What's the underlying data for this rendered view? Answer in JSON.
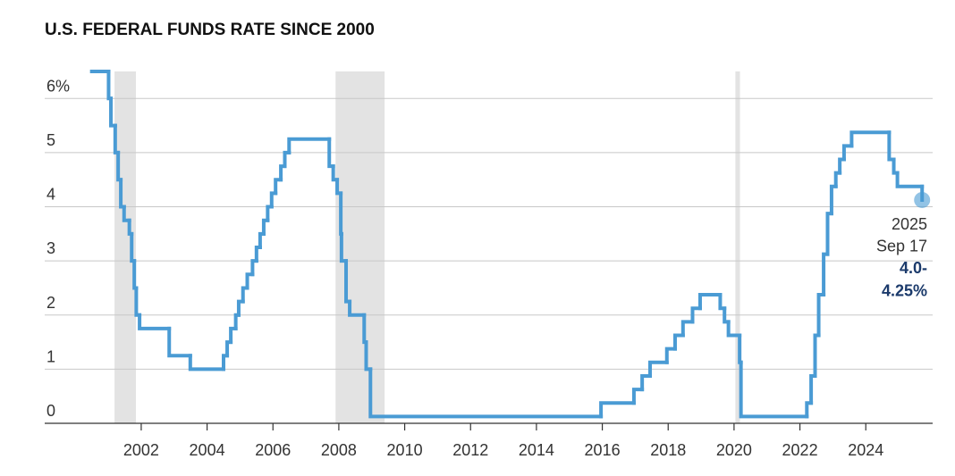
{
  "chart_data": {
    "type": "step-line",
    "title": "U.S. FEDERAL FUNDS RATE SINCE 2000",
    "x": [
      2000.5,
      2001.01,
      2001.08,
      2001.21,
      2001.3,
      2001.38,
      2001.48,
      2001.64,
      2001.71,
      2001.79,
      2001.85,
      2001.95,
      2002.85,
      2003.49,
      2004.5,
      2004.61,
      2004.72,
      2004.87,
      2004.96,
      2005.09,
      2005.22,
      2005.38,
      2005.5,
      2005.61,
      2005.72,
      2005.84,
      2005.96,
      2006.08,
      2006.24,
      2006.36,
      2006.49,
      2007.71,
      2007.83,
      2007.95,
      2008.06,
      2008.08,
      2008.22,
      2008.33,
      2008.77,
      2008.83,
      2008.96,
      2015.96,
      2016.96,
      2017.21,
      2017.45,
      2017.96,
      2018.21,
      2018.45,
      2018.74,
      2018.97,
      2019.58,
      2019.71,
      2019.83,
      2020.17,
      2020.21,
      2022.21,
      2022.34,
      2022.46,
      2022.57,
      2022.72,
      2022.84,
      2022.96,
      2023.09,
      2023.21,
      2023.34,
      2023.57,
      2024.71,
      2024.85,
      2024.96,
      2025.71
    ],
    "series": [
      {
        "color": "#4a9bd4",
        "values": [
          6.5,
          6.0,
          5.5,
          5.0,
          4.5,
          4.0,
          3.75,
          3.5,
          3.0,
          2.5,
          2.0,
          1.75,
          1.25,
          1.0,
          1.25,
          1.5,
          1.75,
          2.0,
          2.25,
          2.5,
          2.75,
          3.0,
          3.25,
          3.5,
          3.75,
          4.0,
          4.25,
          4.5,
          4.75,
          5.0,
          5.25,
          4.75,
          4.5,
          4.25,
          3.5,
          3.0,
          2.25,
          2.0,
          1.5,
          1.0,
          0.125,
          0.375,
          0.625,
          0.875,
          1.125,
          1.375,
          1.625,
          1.875,
          2.125,
          2.375,
          2.125,
          1.875,
          1.625,
          1.125,
          0.125,
          0.375,
          0.875,
          1.625,
          2.375,
          3.125,
          3.875,
          4.375,
          4.625,
          4.875,
          5.125,
          5.375,
          4.875,
          4.625,
          4.375,
          4.125
        ]
      }
    ],
    "recessions": [
      [
        2001.19,
        2001.84
      ],
      [
        2007.9,
        2009.39
      ],
      [
        2020.04,
        2020.18
      ]
    ],
    "recession_color": "#e3e3e3",
    "annotation": {
      "date": [
        "2025",
        "Sep 17"
      ],
      "rate": [
        "4.0-",
        "4.25%"
      ]
    },
    "xlim": [
      1999.07,
      2026.03
    ],
    "ylim": [
      0,
      6.5
    ],
    "xticks": [
      2002,
      2004,
      2006,
      2008,
      2010,
      2012,
      2014,
      2016,
      2018,
      2020,
      2022,
      2024
    ],
    "yticks": [
      0,
      1,
      2,
      3,
      4,
      5,
      {
        "value": 6,
        "label": "6%"
      }
    ],
    "grid": true
  }
}
